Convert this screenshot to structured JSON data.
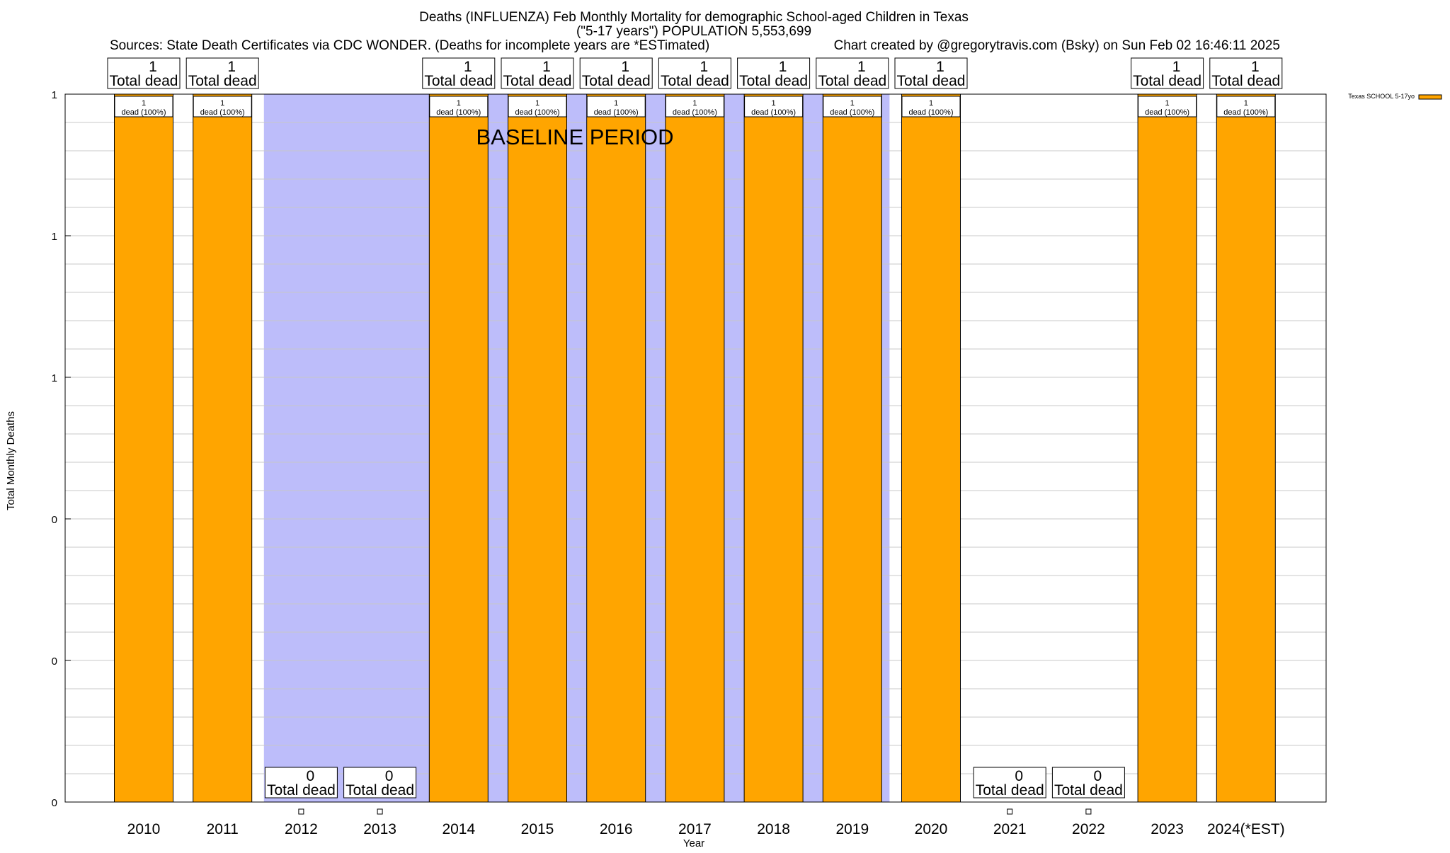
{
  "header": {
    "title_line1": "Deaths (INFLUENZA) Feb Monthly Mortality for demographic School-aged Children in Texas",
    "title_line2": "(\"5-17 years\") POPULATION 5,553,699",
    "sources": "Sources: State Death Certificates via CDC WONDER. (Deaths for incomplete years are *ESTimated)",
    "credit": "Chart created by @gregorytravis.com (Bsky) on Sun Feb 02 16:46:11 2025"
  },
  "colors": {
    "bar": "#ffa500",
    "baseline_band": "#bdbdfa",
    "grid": "#c8c8c8"
  },
  "chart_data": {
    "type": "bar",
    "xlabel": "Year",
    "ylabel": "Total Monthly Deaths",
    "ylim": [
      0,
      1
    ],
    "y_tick_labels": [
      "0",
      "0",
      "0",
      "1",
      "1",
      "1"
    ],
    "grid": true,
    "legend_position": "top-right",
    "annotation": "BASELINE PERIOD",
    "baseline_period": [
      "2012",
      "2019"
    ],
    "total_label_suffix": "Total dead",
    "inner_label_suffix": "dead (100%)",
    "categories": [
      "2010",
      "2011",
      "2012",
      "2013",
      "2014",
      "2015",
      "2016",
      "2017",
      "2018",
      "2019",
      "2020",
      "2021",
      "2022",
      "2023",
      "2024(*EST)"
    ],
    "series": [
      {
        "name": "Texas SCHOOL 5-17yo",
        "values": [
          1,
          1,
          0,
          0,
          1,
          1,
          1,
          1,
          1,
          1,
          1,
          0,
          0,
          1,
          1
        ]
      }
    ]
  }
}
